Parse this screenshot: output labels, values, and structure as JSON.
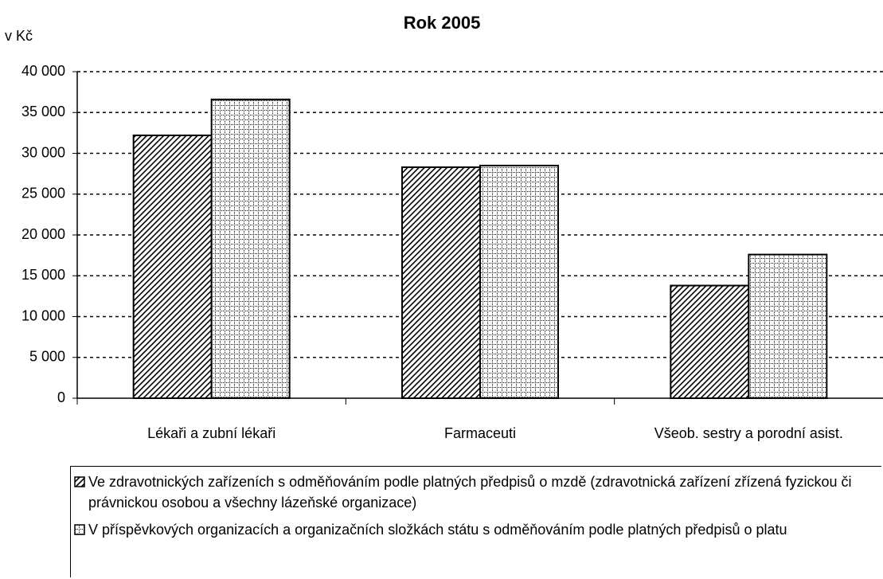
{
  "chart_data": {
    "type": "bar",
    "title": "Rok 2005",
    "y_label": "v Kč",
    "categories": [
      "Lékaři a zubní lékaři",
      "Farmaceuti",
      "Všeob. sestry a porodní asist."
    ],
    "series": [
      {
        "name": "Ve zdravotnických zařízeních s odměňováním podle platných předpisů o mzdě (zdravotnická zařízení zřízená fyzickou či právnickou osobou a všechny lázeňské organizace)",
        "color": "#000000",
        "pattern": "hatch",
        "values": [
          32200,
          28300,
          13800
        ]
      },
      {
        "name": "V příspěvkových organizacích a organizačních složkách státu s odměňováním podle platných předpisů o platu",
        "color": "#000000",
        "pattern": "grid",
        "values": [
          36600,
          28500,
          17600
        ]
      }
    ],
    "ylim": [
      0,
      40000
    ],
    "yticks": [
      0,
      {
        "value": 5000,
        "label": "5 000"
      },
      {
        "value": 10000,
        "label": "10 000"
      },
      {
        "value": 15000,
        "label": "15 000"
      },
      {
        "value": 20000,
        "label": "20 000"
      },
      {
        "value": 25000,
        "label": "25 000"
      },
      {
        "value": 30000,
        "label": "30 000"
      },
      {
        "value": 35000,
        "label": "35 000"
      },
      {
        "value": 40000,
        "label": "40 000"
      }
    ],
    "grid": true,
    "legend": "bottom"
  }
}
